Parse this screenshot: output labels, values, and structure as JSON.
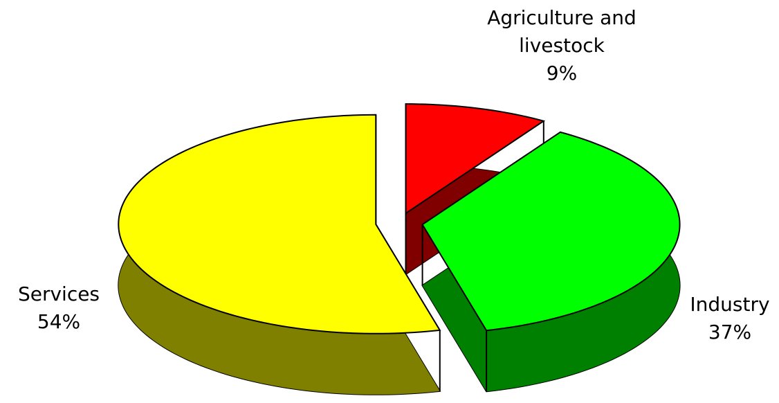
{
  "chart_data": {
    "type": "pie",
    "categories": [
      "Agriculture and livestock",
      "Industry",
      "Services"
    ],
    "values": [
      9,
      37,
      54
    ],
    "value_labels": [
      "9%",
      "37%",
      "54%"
    ],
    "colors": [
      "#ff0000",
      "#00ff00",
      "#ffff00"
    ],
    "side_colors": [
      "#800000",
      "#008000",
      "#808000"
    ]
  }
}
